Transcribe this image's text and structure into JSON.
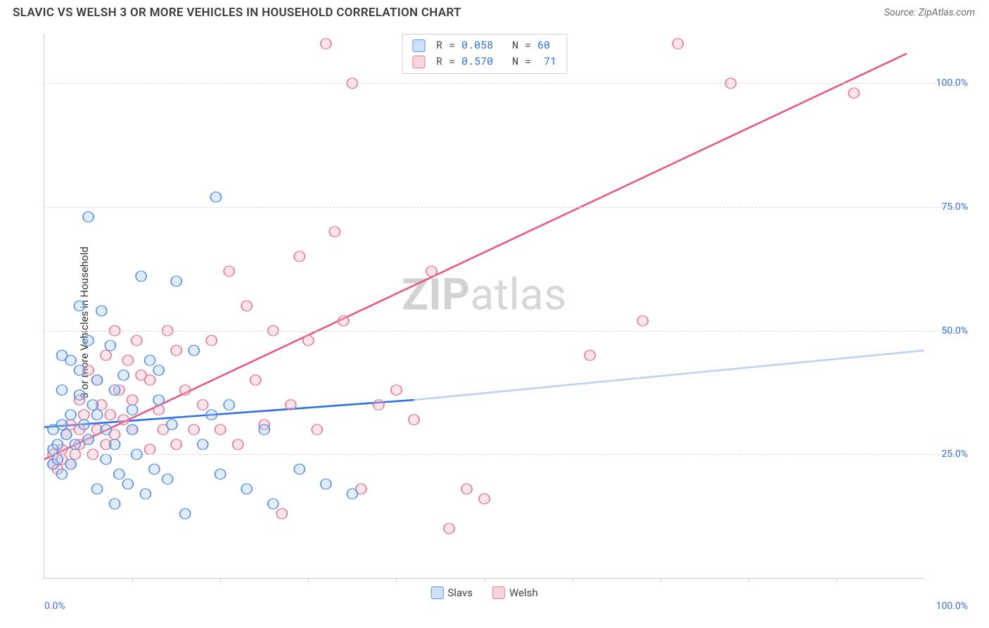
{
  "header": {
    "title": "SLAVIC VS WELSH 3 OR MORE VEHICLES IN HOUSEHOLD CORRELATION CHART",
    "source": "Source: ZipAtlas.com"
  },
  "chart": {
    "type": "scatter",
    "ylabel": "3 or more Vehicles in Household",
    "watermark_a": "ZIP",
    "watermark_b": "atlas",
    "xlim": [
      0,
      100
    ],
    "ylim": [
      0,
      110
    ],
    "xtick_labels": [
      "0.0%",
      "100.0%"
    ],
    "ytick_positions": [
      25,
      50,
      75,
      100
    ],
    "ytick_labels": [
      "25.0%",
      "50.0%",
      "75.0%",
      "100.0%"
    ],
    "xtick_minor_step": 10,
    "grid_color": "#d8d8d8",
    "axis_color": "#c9c9c9",
    "tick_text_color": "#3b6fd6",
    "background_color": "#ffffff",
    "point_radius": 7,
    "point_fill_opacity": 0.35,
    "point_stroke_width": 1.4,
    "trend_line_stroke_width": 2.6,
    "bottom_legend": {
      "series": [
        {
          "label": "Slavs",
          "swatch_fill": "#cfe0f7",
          "swatch_border": "#5a93e0"
        },
        {
          "label": "Welsh",
          "swatch_fill": "#f8d4dd",
          "swatch_border": "#e27a99"
        }
      ]
    },
    "stats_box": {
      "rows": [
        {
          "swatch_fill": "#cfe0f7",
          "swatch_border": "#5a93e0",
          "r_label": "R = ",
          "r": "0.058",
          "n_label": "   N = ",
          "n": "60"
        },
        {
          "swatch_fill": "#f8d4dd",
          "swatch_border": "#e27a99",
          "r_label": "R = ",
          "r": "0.570",
          "n_label": "   N =  ",
          "n": "71"
        }
      ]
    },
    "series": {
      "slavs": {
        "color_stroke": "#5a93e0",
        "color_fill": "#a9c8f0",
        "trend_color": "#2f6fe0",
        "trend_dash_color": "#8fb3ea",
        "points": [
          [
            1,
            23
          ],
          [
            1,
            26
          ],
          [
            1,
            30
          ],
          [
            1.5,
            24
          ],
          [
            1.5,
            27
          ],
          [
            2,
            21
          ],
          [
            2,
            31
          ],
          [
            2,
            38
          ],
          [
            2,
            45
          ],
          [
            2.5,
            29
          ],
          [
            3,
            23
          ],
          [
            3,
            33
          ],
          [
            3,
            44
          ],
          [
            3.5,
            27
          ],
          [
            4,
            37
          ],
          [
            4,
            42
          ],
          [
            4,
            55
          ],
          [
            4.5,
            31
          ],
          [
            5,
            28
          ],
          [
            5,
            48
          ],
          [
            5,
            73
          ],
          [
            5.5,
            35
          ],
          [
            6,
            18
          ],
          [
            6,
            33
          ],
          [
            6,
            40
          ],
          [
            6.5,
            54
          ],
          [
            7,
            24
          ],
          [
            7,
            30
          ],
          [
            7.5,
            47
          ],
          [
            8,
            15
          ],
          [
            8,
            27
          ],
          [
            8,
            38
          ],
          [
            8.5,
            21
          ],
          [
            9,
            41
          ],
          [
            9.5,
            19
          ],
          [
            10,
            30
          ],
          [
            10,
            34
          ],
          [
            10.5,
            25
          ],
          [
            11,
            61
          ],
          [
            11.5,
            17
          ],
          [
            12,
            44
          ],
          [
            12.5,
            22
          ],
          [
            13,
            36
          ],
          [
            13,
            42
          ],
          [
            14,
            20
          ],
          [
            14.5,
            31
          ],
          [
            15,
            60
          ],
          [
            16,
            13
          ],
          [
            17,
            46
          ],
          [
            18,
            27
          ],
          [
            19,
            33
          ],
          [
            19.5,
            77
          ],
          [
            20,
            21
          ],
          [
            21,
            35
          ],
          [
            23,
            18
          ],
          [
            25,
            30
          ],
          [
            26,
            15
          ],
          [
            29,
            22
          ],
          [
            32,
            19
          ],
          [
            35,
            17
          ]
        ],
        "trend": {
          "x0": 0,
          "y0": 30.5,
          "x_solid_end": 42,
          "y_solid_end": 36,
          "x1": 100,
          "y1": 46
        }
      },
      "welsh": {
        "color_stroke": "#e27a99",
        "color_fill": "#f3b4c6",
        "trend_color": "#e35a85",
        "points": [
          [
            1,
            23
          ],
          [
            1,
            25
          ],
          [
            1.5,
            22
          ],
          [
            2,
            24
          ],
          [
            2,
            26
          ],
          [
            2.5,
            29
          ],
          [
            3,
            23
          ],
          [
            3,
            31
          ],
          [
            3.5,
            25
          ],
          [
            4,
            27
          ],
          [
            4,
            30
          ],
          [
            4,
            36
          ],
          [
            4.5,
            33
          ],
          [
            5,
            28
          ],
          [
            5,
            42
          ],
          [
            5.5,
            25
          ],
          [
            6,
            30
          ],
          [
            6,
            40
          ],
          [
            6.5,
            35
          ],
          [
            7,
            27
          ],
          [
            7,
            45
          ],
          [
            7.5,
            33
          ],
          [
            8,
            29
          ],
          [
            8,
            50
          ],
          [
            8.5,
            38
          ],
          [
            9,
            32
          ],
          [
            9.5,
            44
          ],
          [
            10,
            30
          ],
          [
            10,
            36
          ],
          [
            10.5,
            48
          ],
          [
            11,
            41
          ],
          [
            12,
            26
          ],
          [
            12,
            40
          ],
          [
            13,
            34
          ],
          [
            13.5,
            30
          ],
          [
            14,
            50
          ],
          [
            15,
            27
          ],
          [
            15,
            46
          ],
          [
            16,
            38
          ],
          [
            17,
            30
          ],
          [
            18,
            35
          ],
          [
            19,
            48
          ],
          [
            20,
            30
          ],
          [
            21,
            62
          ],
          [
            22,
            27
          ],
          [
            23,
            55
          ],
          [
            24,
            40
          ],
          [
            25,
            31
          ],
          [
            26,
            50
          ],
          [
            27,
            13
          ],
          [
            28,
            35
          ],
          [
            29,
            65
          ],
          [
            30,
            48
          ],
          [
            31,
            30
          ],
          [
            32,
            108
          ],
          [
            33,
            70
          ],
          [
            34,
            52
          ],
          [
            35,
            100
          ],
          [
            36,
            18
          ],
          [
            38,
            35
          ],
          [
            40,
            38
          ],
          [
            42,
            32
          ],
          [
            44,
            62
          ],
          [
            46,
            10
          ],
          [
            48,
            18
          ],
          [
            50,
            16
          ],
          [
            62,
            45
          ],
          [
            68,
            52
          ],
          [
            72,
            108
          ],
          [
            78,
            100
          ],
          [
            92,
            98
          ]
        ],
        "trend": {
          "x0": 0,
          "y0": 24,
          "x1": 98,
          "y1": 106
        }
      }
    }
  }
}
